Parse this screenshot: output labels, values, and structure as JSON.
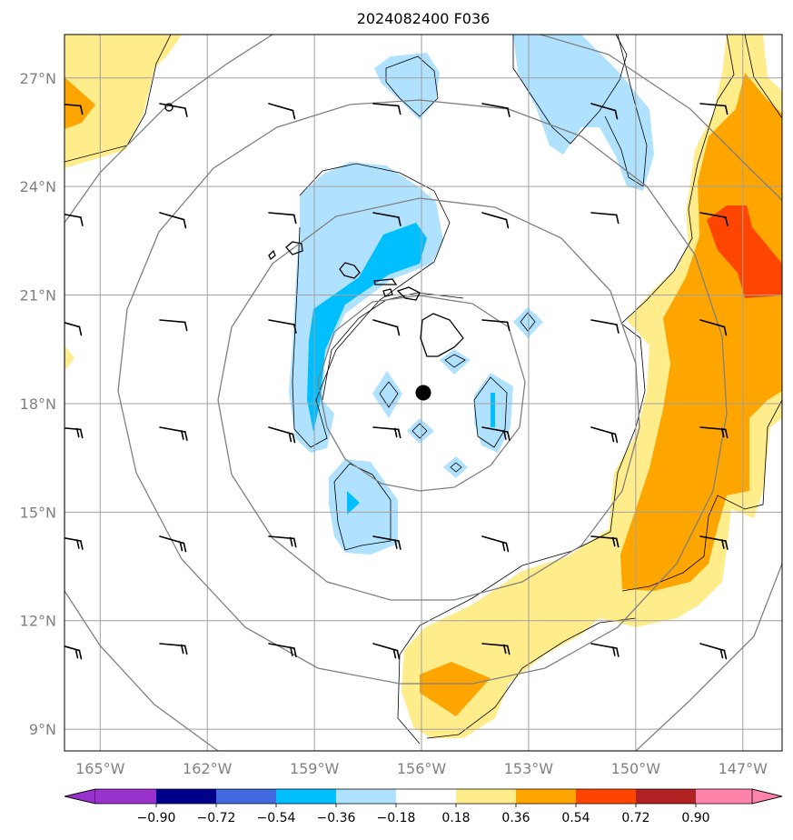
{
  "title": "2024082400 F036",
  "map": {
    "lon_range": [
      -166,
      -145.9
    ],
    "lat_range": [
      8.4,
      28.2
    ],
    "center_marker": {
      "lon": -156.1,
      "lat": 18.1
    },
    "rings_center": {
      "lon": -156.1,
      "lat": 18.1
    },
    "x_ticks": [
      {
        "lon": -165,
        "label": "165°W"
      },
      {
        "lon": -162,
        "label": "162°W"
      },
      {
        "lon": -159,
        "label": "159°W"
      },
      {
        "lon": -156,
        "label": "156°W"
      },
      {
        "lon": -153,
        "label": "153°W"
      },
      {
        "lon": -150,
        "label": "150°W"
      },
      {
        "lon": -147,
        "label": "147°W"
      }
    ],
    "y_ticks": [
      {
        "lat": 27,
        "label": "27°N"
      },
      {
        "lat": 24,
        "label": "24°N"
      },
      {
        "lat": 21,
        "label": "21°N"
      },
      {
        "lat": 18,
        "label": "18°N"
      },
      {
        "lat": 15,
        "label": "15°N"
      },
      {
        "lat": 12,
        "label": "12°N"
      },
      {
        "lat": 9,
        "label": "9°N"
      }
    ]
  },
  "colorbar": {
    "levels": [
      "−0.90",
      "−0.72",
      "−0.54",
      "−0.36",
      "−0.18",
      "0.18",
      "0.36",
      "0.54",
      "0.72",
      "0.90"
    ],
    "colors": [
      "#9932cc",
      "#00008b",
      "#4169e1",
      "#00bfff",
      "#b0e2ff",
      "#ffffff",
      "#ffec8b",
      "#ffa500",
      "#ff4500",
      "#b22222",
      "#ff82ab"
    ]
  },
  "colors": {
    "light_blue": "#b0e2ff",
    "deep_sky_blue": "#00bfff",
    "light_yellow": "#ffec8b",
    "orange": "#ffa500",
    "orange_red": "#ff4500"
  }
}
